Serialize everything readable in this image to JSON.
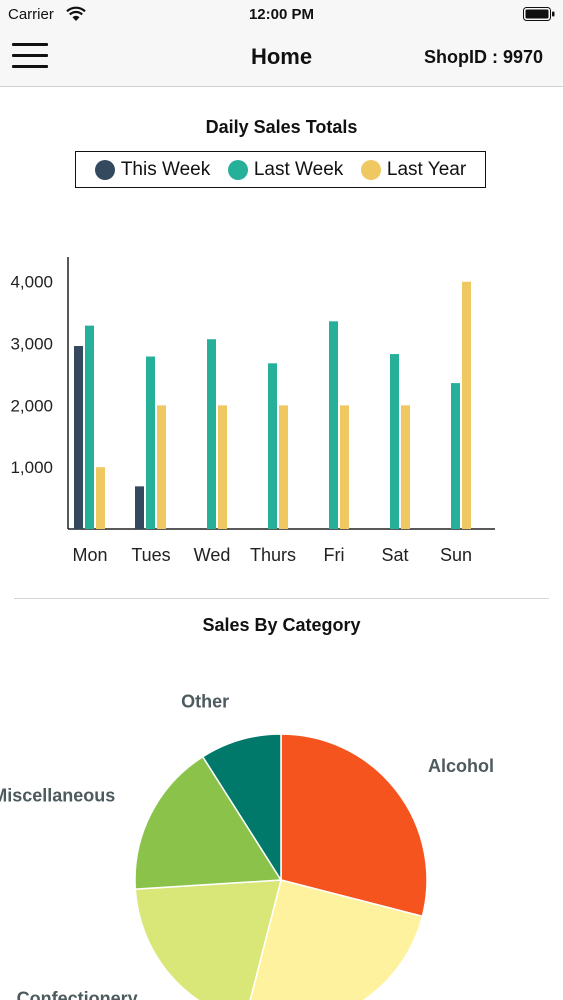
{
  "status_bar": {
    "carrier": "Carrier",
    "time": "12:00 PM"
  },
  "nav": {
    "title": "Home",
    "shop_id": "ShopID : 9970"
  },
  "daily_chart": {
    "title": "Daily Sales Totals",
    "legend": [
      {
        "name": "This Week",
        "color": "#34495e"
      },
      {
        "name": "Last Week",
        "color": "#26b09a"
      },
      {
        "name": "Last Year",
        "color": "#f0c861"
      }
    ]
  },
  "category_chart": {
    "title": "Sales By Category"
  },
  "chart_data": [
    {
      "type": "bar",
      "title": "Daily Sales Totals",
      "categories": [
        "Mon",
        "Tues",
        "Wed",
        "Thurs",
        "Fri",
        "Sat",
        "Sun"
      ],
      "series": [
        {
          "name": "This Week",
          "color": "#34495e",
          "values": [
            2960,
            690,
            null,
            null,
            null,
            null,
            null
          ]
        },
        {
          "name": "Last Week",
          "color": "#26b09a",
          "values": [
            3290,
            2790,
            3070,
            2680,
            3360,
            2830,
            2360
          ]
        },
        {
          "name": "Last Year",
          "color": "#f0c861",
          "values": [
            1000,
            2000,
            2000,
            2000,
            2000,
            2000,
            4000
          ]
        }
      ],
      "yticks": [
        "1,000",
        "2,000",
        "3,000",
        "4,000"
      ],
      "ylim": [
        0,
        4400
      ],
      "legend_position": "top"
    },
    {
      "type": "pie",
      "title": "Sales By Category",
      "slices": [
        {
          "label": "Alcohol",
          "value": 29,
          "color": "#f5541f"
        },
        {
          "label": "",
          "value": 25,
          "color": "#fff29e"
        },
        {
          "label": "Confectionery",
          "value": 20,
          "color": "#d8e777"
        },
        {
          "label": "Miscellaneous",
          "value": 17,
          "color": "#8bc34a"
        },
        {
          "label": "Other",
          "value": 9,
          "color": "#00796b"
        }
      ]
    }
  ]
}
